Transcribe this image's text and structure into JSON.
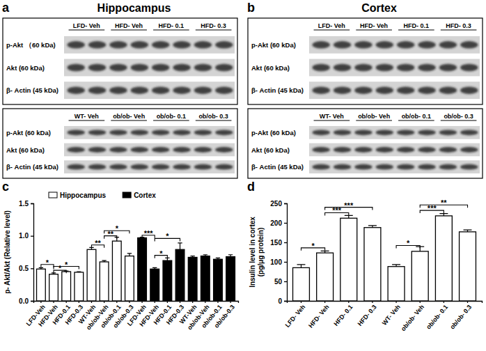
{
  "blot_panels": [
    {
      "label": "a",
      "title": "Hippocampus",
      "blots": [
        {
          "groups": [
            "LFD- Veh",
            "HFD- Veh",
            "HFD- 0.1",
            "HFD- 0.3"
          ],
          "rows": [
            "p-Akt （60 kDa)",
            "Akt (60 kDa)",
            "β- Actin (45 kDa)"
          ]
        },
        {
          "groups": [
            "WT- Veh",
            "ob/ob- Veh",
            "ob/ob- 0.1",
            "ob/ob- 0.3"
          ],
          "rows": [
            "p-Akt (60 kDa)",
            "Akt (60 kDa)",
            "β- Actin (45 kDa)"
          ]
        }
      ]
    },
    {
      "label": "b",
      "title": "Cortex",
      "blots": [
        {
          "groups": [
            "LFD- Veh",
            "HFD- Veh",
            "HFD- 0.1",
            "HFD- 0.3"
          ],
          "rows": [
            "p-Akt (60 kDa)",
            "Akt (60 kDa)",
            "β- Actin (45 kDa)"
          ]
        },
        {
          "groups": [
            "WT- Veh",
            "ob/ob- Veh",
            "ob/ob- 0.1",
            "ob/ob- 0.3"
          ],
          "rows": [
            "p-Akt (60 kDa)",
            "Akt (60 kDa)",
            "β- Actin (45 kDa)"
          ]
        }
      ]
    }
  ],
  "chart_labels": [
    "c",
    "d"
  ],
  "chart_data": [
    {
      "type": "bar",
      "y_label": [
        "p- Akt/Akt (Relative level)"
      ],
      "categories": [
        "LFD-Veh",
        "HFD-Veh",
        "HFD-0.1",
        "HFD-0.3",
        "WT-Veh",
        "ob/ob-Veh",
        "ob/ob-0.1",
        "ob/ob-0.3",
        "LFD-Veh",
        "HFD-Veh",
        "HFD-0.1",
        "HFD-0.3",
        "WT-Veh",
        "ob/ob-Veh",
        "ob/ob-0.1",
        "ob/ob-0.3"
      ],
      "series": [
        {
          "name": "Hippocampus",
          "color": "#ffffff",
          "values": [
            0.49,
            0.41,
            0.45,
            0.44,
            0.79,
            0.6,
            0.92,
            0.69,
            null,
            null,
            null,
            null,
            null,
            null,
            null,
            null
          ],
          "errors": [
            0.02,
            0.02,
            0.01,
            0.01,
            0.03,
            0.02,
            0.06,
            0.04,
            null,
            null,
            null,
            null,
            null,
            null,
            null,
            null
          ]
        },
        {
          "name": "Cortex",
          "color": "#000000",
          "values": [
            null,
            null,
            null,
            null,
            null,
            null,
            null,
            null,
            0.97,
            0.49,
            0.62,
            0.79,
            0.67,
            0.69,
            0.64,
            0.68
          ],
          "errors": [
            null,
            null,
            null,
            null,
            null,
            null,
            null,
            null,
            0.01,
            0.02,
            0.04,
            0.1,
            0.02,
            0.02,
            0.02,
            0.03
          ]
        }
      ],
      "ylim": [
        0,
        1.5
      ],
      "yticks": [
        {
          "value": 0,
          "label": "0.0"
        },
        {
          "value": 0.5,
          "label": "0.5"
        },
        {
          "value": 1,
          "label": "1.0"
        },
        {
          "value": 1.5,
          "label": "1.5"
        }
      ],
      "legend": "top",
      "annotations": [
        {
          "text": "*",
          "from": 0,
          "to": 1,
          "y": 0.56
        },
        {
          "text": "*",
          "from": 1,
          "to": 2,
          "y": 0.47
        },
        {
          "text": "*",
          "from": 1,
          "to": 3,
          "y": 0.53
        },
        {
          "text": "**",
          "from": 4,
          "to": 5,
          "y": 0.86
        },
        {
          "text": "**",
          "from": 5,
          "to": 6,
          "y": 1.0
        },
        {
          "text": "*",
          "from": 5,
          "to": 7,
          "y": 1.08
        },
        {
          "text": "***",
          "from": 8,
          "to": 9,
          "y": 1.01
        },
        {
          "text": "*",
          "from": 9,
          "to": 11,
          "y": 0.96
        },
        {
          "text": "*",
          "from": 9,
          "to": 10,
          "y": 0.7
        }
      ]
    },
    {
      "type": "bar",
      "y_label": [
        "Insulin level in cortex",
        "(pg/μg protein)"
      ],
      "categories": [
        "LFD- Veh",
        "HFD- Veh",
        "HFD- 0.1",
        "HFD- 0.3",
        "WT- Veh",
        "ob/ob- Veh",
        "ob/ob- 0.1",
        "ob/ob- 0.3"
      ],
      "values": [
        85,
        123,
        212,
        188,
        88,
        127,
        218,
        177
      ],
      "errors": [
        8,
        5,
        7,
        5,
        5,
        12,
        6,
        5
      ],
      "color": "#ffffff",
      "ylim": [
        0,
        250
      ],
      "yticks": [
        0,
        50,
        100,
        150,
        200,
        250
      ],
      "annotations": [
        {
          "text": "*",
          "from": 0,
          "to": 1,
          "y": 136
        },
        {
          "text": "***",
          "from": 1,
          "to": 3,
          "y": 240
        },
        {
          "text": "***",
          "from": 1,
          "to": 2,
          "y": 226
        },
        {
          "text": "*",
          "from": 4,
          "to": 5,
          "y": 142
        },
        {
          "text": "***",
          "from": 5,
          "to": 6,
          "y": 232
        },
        {
          "text": "**",
          "from": 5,
          "to": 7,
          "y": 246
        }
      ]
    }
  ]
}
